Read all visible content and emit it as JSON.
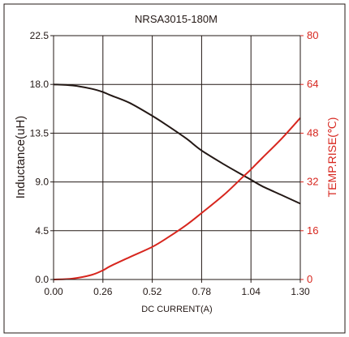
{
  "chart_data": {
    "type": "line",
    "title": "NRSA3015-180M",
    "xlabel": "DC CURRENT(A)",
    "ylabel": "Inductance(uH)",
    "y2label": "TEMP.RISE(℃)",
    "xlim": [
      0,
      1.3
    ],
    "ylim": [
      0,
      22.5
    ],
    "y2lim": [
      0,
      80
    ],
    "x_ticks": [
      "0.00",
      "0.26",
      "0.52",
      "0.78",
      "1.04",
      "1.30"
    ],
    "y_ticks": [
      "0.0",
      "4.5",
      "9.0",
      "13.5",
      "18.0",
      "22.5"
    ],
    "y2_ticks": [
      "0",
      "16",
      "32",
      "48",
      "64",
      "80"
    ],
    "grid": true,
    "colors": {
      "inductance": "#231815",
      "temp_rise": "#d7261e",
      "y2_axis": "#d7261e"
    },
    "series": [
      {
        "axis": "left",
        "x": [
          0,
          0.1,
          0.2,
          0.26,
          0.3,
          0.4,
          0.52,
          0.6,
          0.7,
          0.78,
          0.9,
          1.0,
          1.04,
          1.1,
          1.2,
          1.3
        ],
        "values": [
          18.0,
          17.9,
          17.6,
          17.3,
          17.0,
          16.3,
          15.1,
          14.2,
          13.0,
          11.9,
          10.6,
          9.6,
          9.2,
          8.6,
          7.8,
          7.0
        ]
      },
      {
        "axis": "right",
        "x": [
          0,
          0.1,
          0.2,
          0.26,
          0.3,
          0.4,
          0.52,
          0.6,
          0.7,
          0.78,
          0.9,
          1.0,
          1.04,
          1.1,
          1.2,
          1.3
        ],
        "values": [
          0,
          0.3,
          1.5,
          3.0,
          4.4,
          7.3,
          10.7,
          13.7,
          17.9,
          21.8,
          27.9,
          33.8,
          36.1,
          39.9,
          46.1,
          53.0
        ]
      }
    ]
  }
}
